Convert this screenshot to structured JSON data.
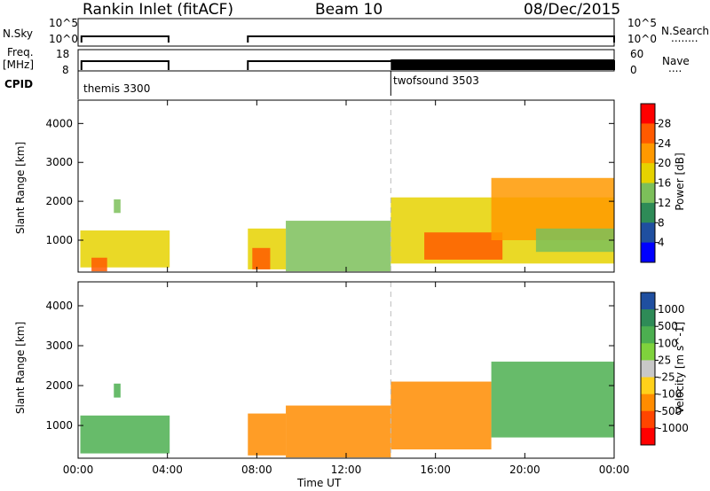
{
  "header": {
    "station": "Rankin Inlet (fitACF)",
    "beam": "Beam 10",
    "date": "08/Dec/2015"
  },
  "panels": {
    "nsky": {
      "label": "N.Sky",
      "ticks_left": [
        "10^5",
        "10^0"
      ],
      "ticks_right": [
        "10^5",
        "10^0"
      ],
      "right_label": "N.Search",
      "right_dots": "........"
    },
    "freq": {
      "label_top": "Freq.",
      "label_bottom": "[MHz]",
      "ticks_left": [
        "18",
        "8"
      ],
      "ticks_right": [
        "60",
        "0"
      ],
      "right_label": "Nave",
      "right_dots": "...."
    },
    "cpid": {
      "label": "CPID",
      "program_1": "themis 3300",
      "program_2": "twofsound 3503"
    }
  },
  "colors": {
    "power": [
      "#0000ff",
      "#1f4fa0",
      "#2e8b57",
      "#7cbf5a",
      "#e6d200",
      "#ff9900",
      "#ff5a00",
      "#ff0000"
    ],
    "velocity": [
      "#1f4fa0",
      "#2e8b57",
      "#4caf50",
      "#7fd23c",
      "#c8c8c8",
      "#ffd11a",
      "#ff8c00",
      "#ff4500",
      "#ff0000"
    ]
  },
  "chart_data": [
    {
      "type": "heatmap",
      "name": "power",
      "xlabel": "Time UT",
      "ylabel": "Slant Range [km]",
      "xlim": [
        0,
        24
      ],
      "ylim": [
        180,
        4600
      ],
      "x_tick_labels": [
        "00:00",
        "04:00",
        "08:00",
        "12:00",
        "16:00",
        "20:00",
        "00:00"
      ],
      "y_ticks": [
        1000,
        2000,
        3000,
        4000
      ],
      "colorbar": {
        "label": "Power [dB]",
        "ticks": [
          "4",
          "8",
          "12",
          "16",
          "20",
          "24",
          "28"
        ],
        "range": [
          0,
          32
        ]
      },
      "vertical_marker_x": 14.0,
      "regions": [
        {
          "x": [
            0.1,
            4.1
          ],
          "y": [
            300,
            1250
          ],
          "level": 0.5
        },
        {
          "x": [
            0.6,
            1.3
          ],
          "y": [
            200,
            550
          ],
          "level": 0.92
        },
        {
          "x": [
            1.6,
            1.9
          ],
          "y": [
            1700,
            2050
          ],
          "level": 0.4
        },
        {
          "x": [
            7.6,
            9.3
          ],
          "y": [
            250,
            1300
          ],
          "level": 0.55
        },
        {
          "x": [
            7.8,
            8.6
          ],
          "y": [
            250,
            800
          ],
          "level": 0.8
        },
        {
          "x": [
            9.3,
            14.0
          ],
          "y": [
            200,
            1500
          ],
          "level": 0.45
        },
        {
          "x": [
            14.0,
            24.0
          ],
          "y": [
            400,
            2100
          ],
          "level": 0.62
        },
        {
          "x": [
            15.5,
            19.0
          ],
          "y": [
            500,
            1200
          ],
          "level": 0.92
        },
        {
          "x": [
            18.5,
            24.0
          ],
          "y": [
            1000,
            2600
          ],
          "level": 0.68
        },
        {
          "x": [
            20.5,
            24.0
          ],
          "y": [
            700,
            1300
          ],
          "level": 0.4
        }
      ]
    },
    {
      "type": "heatmap",
      "name": "velocity",
      "xlabel": "Time UT",
      "ylabel": "Slant Range [km]",
      "xlim": [
        0,
        24
      ],
      "ylim": [
        180,
        4600
      ],
      "x_tick_labels": [
        "00:00",
        "04:00",
        "08:00",
        "12:00",
        "16:00",
        "20:00",
        "00:00"
      ],
      "y_ticks": [
        1000,
        2000,
        3000,
        4000
      ],
      "colorbar": {
        "label": "Velocity [m s^-1]",
        "ticks": [
          "1000",
          "500",
          "100",
          "25",
          "-25",
          "-100",
          "-500",
          "-1000"
        ]
      },
      "vertical_marker_x": 14.0,
      "regions": [
        {
          "x": [
            0.1,
            4.1
          ],
          "y": [
            300,
            1250
          ],
          "level": 0.2
        },
        {
          "x": [
            1.6,
            1.9
          ],
          "y": [
            1700,
            2050
          ],
          "level": 0.3
        },
        {
          "x": [
            7.6,
            9.3
          ],
          "y": [
            250,
            1300
          ],
          "level": 0.7
        },
        {
          "x": [
            9.3,
            14.0
          ],
          "y": [
            200,
            1500
          ],
          "level": 0.75
        },
        {
          "x": [
            14.0,
            18.5
          ],
          "y": [
            400,
            2100
          ],
          "level": 0.72
        },
        {
          "x": [
            18.5,
            24.0
          ],
          "y": [
            700,
            2600
          ],
          "level": 0.3
        }
      ]
    }
  ]
}
